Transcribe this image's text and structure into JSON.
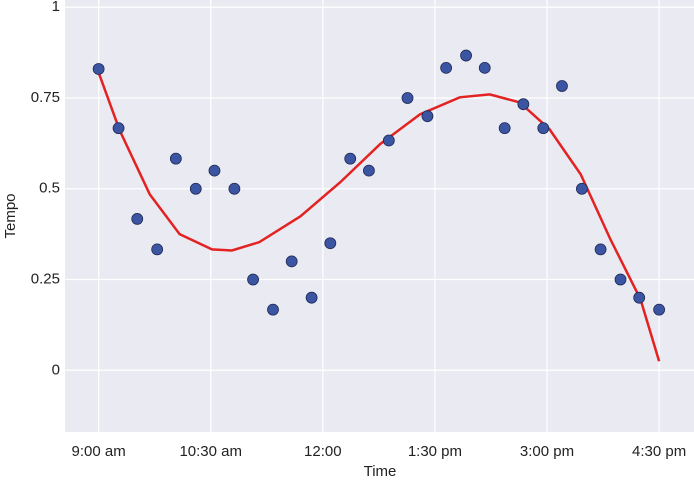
{
  "chart_data": {
    "type": "scatter",
    "xlabel": "Time",
    "ylabel": "Tempo",
    "x": [
      540,
      556,
      571,
      587,
      602,
      618,
      633,
      649,
      664,
      680,
      695,
      711,
      726,
      742,
      757,
      773,
      788,
      804,
      819,
      835,
      850,
      866,
      881,
      897,
      912,
      928,
      943,
      959,
      974,
      990
    ],
    "values": [
      0.83,
      0.667,
      0.417,
      0.333,
      0.583,
      0.5,
      0.55,
      0.5,
      0.25,
      0.167,
      0.3,
      0.2,
      0.35,
      0.583,
      0.55,
      0.633,
      0.75,
      0.7,
      0.833,
      0.867,
      0.833,
      0.667,
      0.733,
      0.667,
      0.783,
      0.5,
      0.333,
      0.25,
      0.2,
      0.167
    ],
    "color": "#3b55a3",
    "fit": {
      "type": "line",
      "color": "#e32222",
      "x": [
        540,
        557,
        581,
        605,
        631,
        647,
        669,
        702,
        734,
        766,
        798,
        830,
        854,
        878,
        902,
        927,
        951,
        975,
        990
      ],
      "values": [
        0.82,
        0.66,
        0.485,
        0.375,
        0.333,
        0.33,
        0.353,
        0.424,
        0.518,
        0.623,
        0.705,
        0.752,
        0.76,
        0.738,
        0.664,
        0.54,
        0.36,
        0.196,
        0.025
      ]
    },
    "xlim": [
      513,
      1018
    ],
    "ylim": [
      -0.17,
      1.02
    ],
    "xticks": [
      {
        "value": 540,
        "label": "9:00 am"
      },
      {
        "value": 630,
        "label": "10:30 am"
      },
      {
        "value": 720,
        "label": "12:00"
      },
      {
        "value": 810,
        "label": "1:30 pm"
      },
      {
        "value": 900,
        "label": "3:00 pm"
      },
      {
        "value": 990,
        "label": "4:30 pm"
      }
    ],
    "yticks": [
      0,
      0.25,
      0.5,
      0.75,
      1
    ],
    "grid": true,
    "background": "#eaeaf2"
  }
}
